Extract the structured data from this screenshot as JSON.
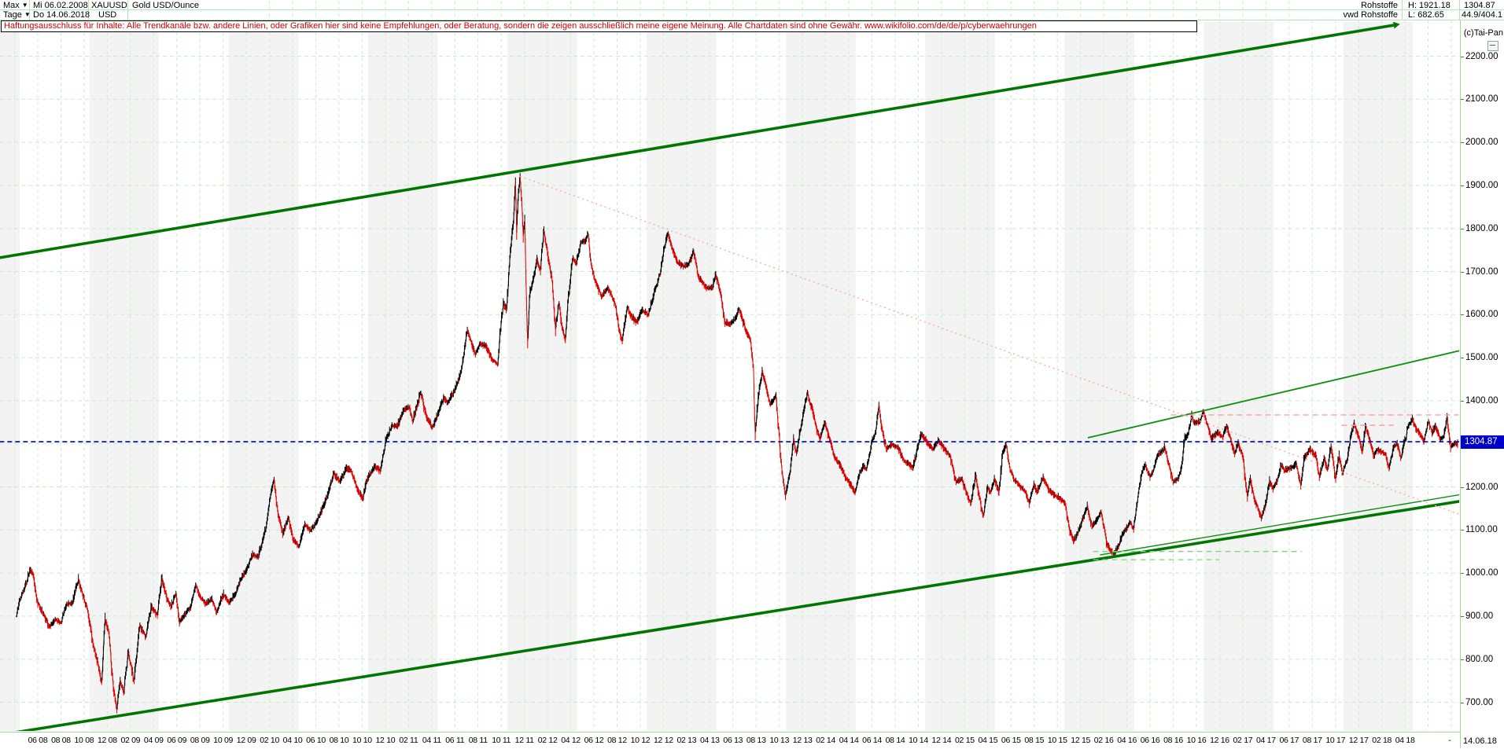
{
  "header": {
    "range_selector": "Max",
    "period_selector": "Tage",
    "date_from": "Mi 06.02.2008",
    "date_to": "Do 14.06.2018",
    "symbol": "XAUUSD",
    "currency": "USD",
    "instrument": "Gold USD/Ounce",
    "group": "Rohstoffe",
    "source": "vwd Rohstoffe",
    "high_label": "H: 1921.18",
    "low_label": "L: 682.65",
    "last_price": "1304.87",
    "stat": "44.9/404.1",
    "copyright": "(c)Tai-Pan"
  },
  "disclaimer": "Haftungsausschluss für Inhalte: Alle Trendkanäle bzw. andere Linien, oder Grafiken hier sind keine Empfehlungen, oder Beratung, sondern die zeigen ausschließlich meine eigene Meinung. Alle Chartdaten sind ohne Gewähr.  www.wikifolio.com/de/de/p/cyberwaehrungen",
  "axis": {
    "price_ticks": [
      "2200.00",
      "2100.00",
      "2000.00",
      "1900.00",
      "1800.00",
      "1700.00",
      "1600.00",
      "1500.00",
      "1400.00",
      "1200.00",
      "1100.00",
      "1000.00",
      "900.00",
      "800.00",
      "700.00"
    ],
    "last_price_label": "1304.87",
    "end_date_label": "14.06.18",
    "separator": "-",
    "x_labels": [
      "06 08",
      "08 08",
      "10 08",
      "12 08",
      "02 09",
      "04 09",
      "06 09",
      "08 09",
      "10 09",
      "12 09",
      "02 10",
      "04 10",
      "06 10",
      "08 10",
      "10 10",
      "12 10",
      "02 11",
      "04 11",
      "06 11",
      "08 11",
      "10 11",
      "12 11",
      "02 12",
      "04 12",
      "06 12",
      "08 12",
      "10 12",
      "12 12",
      "02 13",
      "04 13",
      "06 13",
      "08 13",
      "10 13",
      "12 13",
      "02 14",
      "04 14",
      "06 14",
      "08 14",
      "10 14",
      "12 14",
      "02 15",
      "04 15",
      "06 15",
      "08 15",
      "10 15",
      "12 15",
      "02 16",
      "04 16",
      "06 16",
      "08 16",
      "10 16",
      "12 16",
      "02 17",
      "04 17",
      "06 17",
      "08 17",
      "10 17",
      "12 17",
      "02 18",
      "04 18"
    ]
  },
  "chart_data": {
    "type": "line",
    "title": "Gold USD/Ounce (XAUUSD), Tageschart 06.02.2008 - 14.06.2018",
    "x_unit": "months_since_2008_02",
    "ylim": [
      660,
      2255
    ],
    "high": 1921.18,
    "low": 682.65,
    "last": 1304.87,
    "grid": {
      "h_step": 100,
      "v_label_step_months": 2
    },
    "colors": {
      "up": "#000000",
      "down": "#dd0000",
      "channel": "#007600",
      "support_thin": "#0d8f0d",
      "resistance_red": "#ff9e9e",
      "decline_dotted": "#ffaaaa",
      "support_green_dash": "#7fd87f",
      "last_price": "#0000bb",
      "grid": "#c6eec6",
      "stripe": "#f3f3f3"
    },
    "series": [
      [
        0,
        895
      ],
      [
        0.4,
        940
      ],
      [
        0.9,
        975
      ],
      [
        1.25,
        1008
      ],
      [
        1.5,
        995
      ],
      [
        1.9,
        930
      ],
      [
        2.4,
        905
      ],
      [
        2.9,
        875
      ],
      [
        3.4,
        892
      ],
      [
        3.9,
        885
      ],
      [
        4.4,
        928
      ],
      [
        4.9,
        930
      ],
      [
        5.4,
        985
      ],
      [
        5.7,
        958
      ],
      [
        6.2,
        912
      ],
      [
        6.7,
        833
      ],
      [
        7.1,
        788
      ],
      [
        7.4,
        745
      ],
      [
        7.7,
        892
      ],
      [
        8.0,
        865
      ],
      [
        8.4,
        738
      ],
      [
        8.7,
        683
      ],
      [
        9.0,
        752
      ],
      [
        9.3,
        722
      ],
      [
        9.7,
        818
      ],
      [
        10.2,
        748
      ],
      [
        10.7,
        878
      ],
      [
        11.2,
        852
      ],
      [
        11.7,
        922
      ],
      [
        12.2,
        902
      ],
      [
        12.6,
        988
      ],
      [
        13.0,
        942
      ],
      [
        13.4,
        922
      ],
      [
        13.8,
        952
      ],
      [
        14.1,
        885
      ],
      [
        14.6,
        905
      ],
      [
        15.1,
        922
      ],
      [
        15.5,
        972
      ],
      [
        15.9,
        945
      ],
      [
        16.4,
        928
      ],
      [
        16.9,
        940
      ],
      [
        17.3,
        908
      ],
      [
        17.9,
        952
      ],
      [
        18.4,
        932
      ],
      [
        18.9,
        950
      ],
      [
        19.5,
        992
      ],
      [
        19.9,
        1008
      ],
      [
        20.4,
        1042
      ],
      [
        20.9,
        1038
      ],
      [
        21.5,
        1098
      ],
      [
        21.9,
        1172
      ],
      [
        22.25,
        1215
      ],
      [
        22.6,
        1138
      ],
      [
        23.0,
        1092
      ],
      [
        23.5,
        1128
      ],
      [
        23.9,
        1078
      ],
      [
        24.4,
        1062
      ],
      [
        24.9,
        1112
      ],
      [
        25.4,
        1098
      ],
      [
        25.9,
        1118
      ],
      [
        26.4,
        1148
      ],
      [
        26.9,
        1182
      ],
      [
        27.4,
        1232
      ],
      [
        27.9,
        1212
      ],
      [
        28.5,
        1243
      ],
      [
        28.9,
        1238
      ],
      [
        29.4,
        1196
      ],
      [
        29.9,
        1172
      ],
      [
        30.2,
        1212
      ],
      [
        30.9,
        1248
      ],
      [
        31.4,
        1238
      ],
      [
        31.9,
        1308
      ],
      [
        32.4,
        1342
      ],
      [
        32.9,
        1342
      ],
      [
        33.4,
        1378
      ],
      [
        33.9,
        1385
      ],
      [
        34.2,
        1352
      ],
      [
        34.9,
        1418
      ],
      [
        35.4,
        1362
      ],
      [
        35.9,
        1338
      ],
      [
        36.4,
        1372
      ],
      [
        36.9,
        1408
      ],
      [
        37.2,
        1395
      ],
      [
        37.9,
        1428
      ],
      [
        38.4,
        1472
      ],
      [
        38.9,
        1562
      ],
      [
        39.2,
        1540
      ],
      [
        39.6,
        1508
      ],
      [
        40.0,
        1532
      ],
      [
        40.5,
        1528
      ],
      [
        41.0,
        1498
      ],
      [
        41.5,
        1485
      ],
      [
        42.0,
        1628
      ],
      [
        42.3,
        1612
      ],
      [
        42.6,
        1742
      ],
      [
        42.9,
        1826
      ],
      [
        43.05,
        1908
      ],
      [
        43.15,
        1792
      ],
      [
        43.3,
        1878
      ],
      [
        43.45,
        1920
      ],
      [
        43.6,
        1862
      ],
      [
        43.72,
        1782
      ],
      [
        43.85,
        1822
      ],
      [
        44.0,
        1625
      ],
      [
        44.1,
        1538
      ],
      [
        44.3,
        1652
      ],
      [
        44.6,
        1682
      ],
      [
        44.9,
        1728
      ],
      [
        45.2,
        1702
      ],
      [
        45.5,
        1795
      ],
      [
        45.8,
        1748
      ],
      [
        46.2,
        1682
      ],
      [
        46.5,
        1568
      ],
      [
        46.8,
        1625
      ],
      [
        47.1,
        1568
      ],
      [
        47.35,
        1542
      ],
      [
        47.6,
        1640
      ],
      [
        48.0,
        1732
      ],
      [
        48.3,
        1718
      ],
      [
        48.7,
        1768
      ],
      [
        49.1,
        1772
      ],
      [
        49.3,
        1788
      ],
      [
        49.6,
        1712
      ],
      [
        50.0,
        1672
      ],
      [
        50.5,
        1642
      ],
      [
        51.0,
        1662
      ],
      [
        51.3,
        1648
      ],
      [
        51.7,
        1618
      ],
      [
        52.0,
        1562
      ],
      [
        52.25,
        1540
      ],
      [
        52.7,
        1618
      ],
      [
        53.0,
        1598
      ],
      [
        53.5,
        1582
      ],
      [
        54.0,
        1612
      ],
      [
        54.5,
        1598
      ],
      [
        55.0,
        1652
      ],
      [
        55.5,
        1692
      ],
      [
        56.0,
        1772
      ],
      [
        56.2,
        1788
      ],
      [
        56.7,
        1742
      ],
      [
        57.0,
        1722
      ],
      [
        57.5,
        1712
      ],
      [
        58.0,
        1718
      ],
      [
        58.4,
        1748
      ],
      [
        58.8,
        1688
      ],
      [
        59.1,
        1678
      ],
      [
        59.5,
        1662
      ],
      [
        60.0,
        1662
      ],
      [
        60.3,
        1694
      ],
      [
        60.7,
        1652
      ],
      [
        61.1,
        1582
      ],
      [
        61.5,
        1578
      ],
      [
        62.0,
        1592
      ],
      [
        62.3,
        1612
      ],
      [
        63.0,
        1558
      ],
      [
        63.3,
        1542
      ],
      [
        63.55,
        1478
      ],
      [
        63.7,
        1321
      ],
      [
        63.95,
        1402
      ],
      [
        64.3,
        1468
      ],
      [
        64.6,
        1438
      ],
      [
        65.0,
        1392
      ],
      [
        65.5,
        1412
      ],
      [
        66.0,
        1238
      ],
      [
        66.3,
        1180
      ],
      [
        66.7,
        1232
      ],
      [
        67.0,
        1308
      ],
      [
        67.25,
        1278
      ],
      [
        67.6,
        1332
      ],
      [
        68.0,
        1392
      ],
      [
        68.2,
        1418
      ],
      [
        68.7,
        1372
      ],
      [
        69.0,
        1332
      ],
      [
        69.3,
        1312
      ],
      [
        69.7,
        1348
      ],
      [
        70.0,
        1322
      ],
      [
        70.5,
        1272
      ],
      [
        71.0,
        1252
      ],
      [
        71.5,
        1222
      ],
      [
        72.0,
        1202
      ],
      [
        72.3,
        1186
      ],
      [
        72.7,
        1232
      ],
      [
        73.0,
        1248
      ],
      [
        73.3,
        1242
      ],
      [
        73.8,
        1308
      ],
      [
        74.1,
        1328
      ],
      [
        74.35,
        1388
      ],
      [
        74.6,
        1338
      ],
      [
        75.0,
        1288
      ],
      [
        75.5,
        1298
      ],
      [
        76.0,
        1292
      ],
      [
        76.5,
        1262
      ],
      [
        77.0,
        1252
      ],
      [
        77.3,
        1244
      ],
      [
        77.7,
        1292
      ],
      [
        78.0,
        1322
      ],
      [
        78.3,
        1312
      ],
      [
        79.0,
        1288
      ],
      [
        79.5,
        1308
      ],
      [
        80.0,
        1288
      ],
      [
        80.5,
        1272
      ],
      [
        81.0,
        1212
      ],
      [
        81.5,
        1218
      ],
      [
        82.0,
        1178
      ],
      [
        82.3,
        1162
      ],
      [
        82.7,
        1228
      ],
      [
        83.0,
        1178
      ],
      [
        83.35,
        1132
      ],
      [
        83.7,
        1198
      ],
      [
        84.0,
        1188
      ],
      [
        84.3,
        1218
      ],
      [
        84.7,
        1188
      ],
      [
        85.05,
        1282
      ],
      [
        85.3,
        1298
      ],
      [
        85.7,
        1238
      ],
      [
        86.0,
        1218
      ],
      [
        86.5,
        1202
      ],
      [
        87.0,
        1188
      ],
      [
        87.3,
        1162
      ],
      [
        87.7,
        1205
      ],
      [
        88.0,
        1188
      ],
      [
        88.5,
        1222
      ],
      [
        89.0,
        1192
      ],
      [
        89.5,
        1182
      ],
      [
        90.0,
        1172
      ],
      [
        90.4,
        1162
      ],
      [
        90.8,
        1098
      ],
      [
        91.15,
        1075
      ],
      [
        91.5,
        1092
      ],
      [
        92.0,
        1132
      ],
      [
        92.3,
        1155
      ],
      [
        92.7,
        1108
      ],
      [
        93.0,
        1118
      ],
      [
        93.5,
        1142
      ],
      [
        94.0,
        1068
      ],
      [
        94.3,
        1052
      ],
      [
        94.6,
        1046
      ],
      [
        95.0,
        1062
      ],
      [
        95.3,
        1088
      ],
      [
        95.7,
        1105
      ],
      [
        96.0,
        1118
      ],
      [
        96.3,
        1102
      ],
      [
        96.7,
        1182
      ],
      [
        97.0,
        1232
      ],
      [
        97.3,
        1252
      ],
      [
        97.7,
        1222
      ],
      [
        98.0,
        1238
      ],
      [
        98.35,
        1272
      ],
      [
        99.0,
        1292
      ],
      [
        99.3,
        1256
      ],
      [
        99.7,
        1212
      ],
      [
        100.1,
        1218
      ],
      [
        100.4,
        1242
      ],
      [
        100.7,
        1312
      ],
      [
        101.0,
        1322
      ],
      [
        101.3,
        1366
      ],
      [
        101.5,
        1348
      ],
      [
        102.0,
        1352
      ],
      [
        102.3,
        1374
      ],
      [
        102.7,
        1342
      ],
      [
        103.0,
        1312
      ],
      [
        103.5,
        1326
      ],
      [
        104.0,
        1316
      ],
      [
        104.3,
        1342
      ],
      [
        104.7,
        1306
      ],
      [
        105.0,
        1276
      ],
      [
        105.3,
        1302
      ],
      [
        105.7,
        1272
      ],
      [
        106.1,
        1178
      ],
      [
        106.35,
        1218
      ],
      [
        106.7,
        1172
      ],
      [
        107.0,
        1152
      ],
      [
        107.3,
        1128
      ],
      [
        107.7,
        1162
      ],
      [
        108.0,
        1212
      ],
      [
        108.3,
        1196
      ],
      [
        108.7,
        1216
      ],
      [
        109.0,
        1252
      ],
      [
        109.3,
        1238
      ],
      [
        110.0,
        1246
      ],
      [
        110.3,
        1256
      ],
      [
        110.7,
        1202
      ],
      [
        111.0,
        1266
      ],
      [
        111.5,
        1288
      ],
      [
        112.0,
        1272
      ],
      [
        112.3,
        1222
      ],
      [
        112.7,
        1266
      ],
      [
        113.0,
        1242
      ],
      [
        113.3,
        1294
      ],
      [
        113.7,
        1218
      ],
      [
        114.0,
        1272
      ],
      [
        114.3,
        1232
      ],
      [
        114.7,
        1262
      ],
      [
        115.0,
        1318
      ],
      [
        115.3,
        1348
      ],
      [
        115.7,
        1316
      ],
      [
        116.0,
        1282
      ],
      [
        116.3,
        1342
      ],
      [
        116.7,
        1302
      ],
      [
        117.0,
        1272
      ],
      [
        117.3,
        1286
      ],
      [
        118.0,
        1276
      ],
      [
        118.3,
        1242
      ],
      [
        118.7,
        1292
      ],
      [
        119.0,
        1302
      ],
      [
        119.3,
        1268
      ],
      [
        120.0,
        1342
      ],
      [
        120.3,
        1358
      ],
      [
        120.7,
        1332
      ],
      [
        121.0,
        1322
      ],
      [
        121.3,
        1306
      ],
      [
        121.7,
        1352
      ],
      [
        122.0,
        1326
      ],
      [
        122.3,
        1342
      ],
      [
        122.7,
        1312
      ],
      [
        123.0,
        1316
      ],
      [
        123.3,
        1362
      ],
      [
        123.6,
        1292
      ],
      [
        124.0,
        1302
      ],
      [
        124.3,
        1298
      ],
      [
        124.5,
        1304.87
      ]
    ],
    "lines": [
      {
        "id": "upper-channel",
        "m1": -1.4,
        "v1": 1732,
        "m2": 118.7,
        "v2": 2272,
        "color": "#007600",
        "w": 3.6,
        "arrow": true
      },
      {
        "id": "lower-channel",
        "m1": -1.4,
        "v1": 624,
        "m2": 128.2,
        "v2": 1183,
        "color": "#007600",
        "w": 3.6
      },
      {
        "id": "support-fan-thin",
        "m1": 93.4,
        "v1": 1042,
        "m2": 128.2,
        "v2": 1199,
        "color": "#0d8f0d",
        "w": 1.4
      },
      {
        "id": "rising-support",
        "m1": 92.35,
        "v1": 1314,
        "m2": 124.5,
        "v2": 1517,
        "color": "#0d8f0d",
        "w": 1.8
      },
      {
        "id": "decline-from-2011-peak",
        "m1": 43.45,
        "v1": 1921,
        "m2": 124.3,
        "v2": 1137,
        "color": "#ffaaaa",
        "w": 1.4,
        "dash": "2 4"
      },
      {
        "id": "resistance-1366",
        "m1": 99.5,
        "v1": 1367,
        "m2": 124.3,
        "v2": 1367,
        "color": "#ff9e9e",
        "w": 1.4,
        "dash": "7 5"
      },
      {
        "id": "resistance-1343",
        "m1": 114.2,
        "v1": 1343,
        "m2": 118.7,
        "v2": 1343,
        "color": "#ff9e9e",
        "w": 1.4,
        "dash": "7 5"
      },
      {
        "id": "support-1050",
        "m1": 92.8,
        "v1": 1050,
        "m2": 110.8,
        "v2": 1050,
        "color": "#7fd87f",
        "w": 1.3,
        "dash": "7 5"
      },
      {
        "id": "support-1031",
        "m1": 92.8,
        "v1": 1031,
        "m2": 103.7,
        "v2": 1031,
        "color": "#7fd87f",
        "w": 1.3,
        "dash": "7 5"
      },
      {
        "id": "last-price-line",
        "m1": -1.4,
        "v1": 1304.87,
        "m2": 124.35,
        "v2": 1304.87,
        "color": "#0000bb",
        "w": 1.6,
        "dash": "6 4"
      }
    ]
  }
}
